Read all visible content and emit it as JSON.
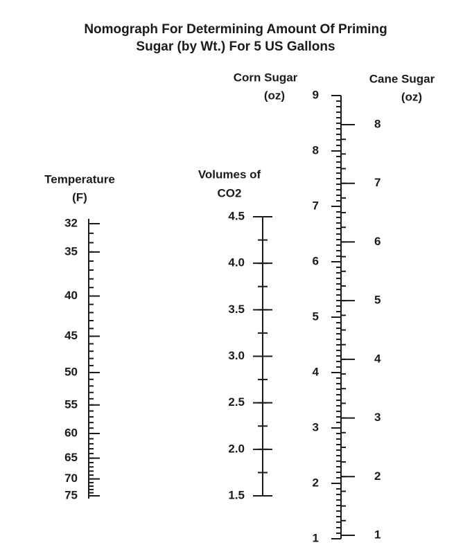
{
  "title": [
    "Nomograph For Determining Amount Of Priming",
    "Sugar (by Wt.) For 5 US Gallons"
  ],
  "scales": [
    {
      "label": [
        "Temperature",
        "(F)"
      ],
      "ticks": [
        32,
        35,
        40,
        45,
        50,
        55,
        60,
        65,
        70,
        75
      ]
    },
    {
      "label": [
        "Volumes of",
        "CO2"
      ],
      "ticks": [
        4.5,
        {
          "value": 4,
          "label": "4.0"
        },
        3.5,
        {
          "value": 3,
          "label": "3.0"
        },
        2.5,
        {
          "value": 2,
          "label": "2.0"
        },
        1.5
      ]
    },
    {
      "label": [
        "Corn Sugar",
        "(oz)"
      ],
      "ticks": [
        9,
        8,
        7,
        6,
        5,
        4,
        3,
        2,
        1
      ]
    },
    {
      "label": [
        "Cane Sugar",
        "(oz)"
      ],
      "ticks": [
        8,
        7,
        6,
        5,
        4,
        3,
        2,
        1
      ]
    }
  ]
}
